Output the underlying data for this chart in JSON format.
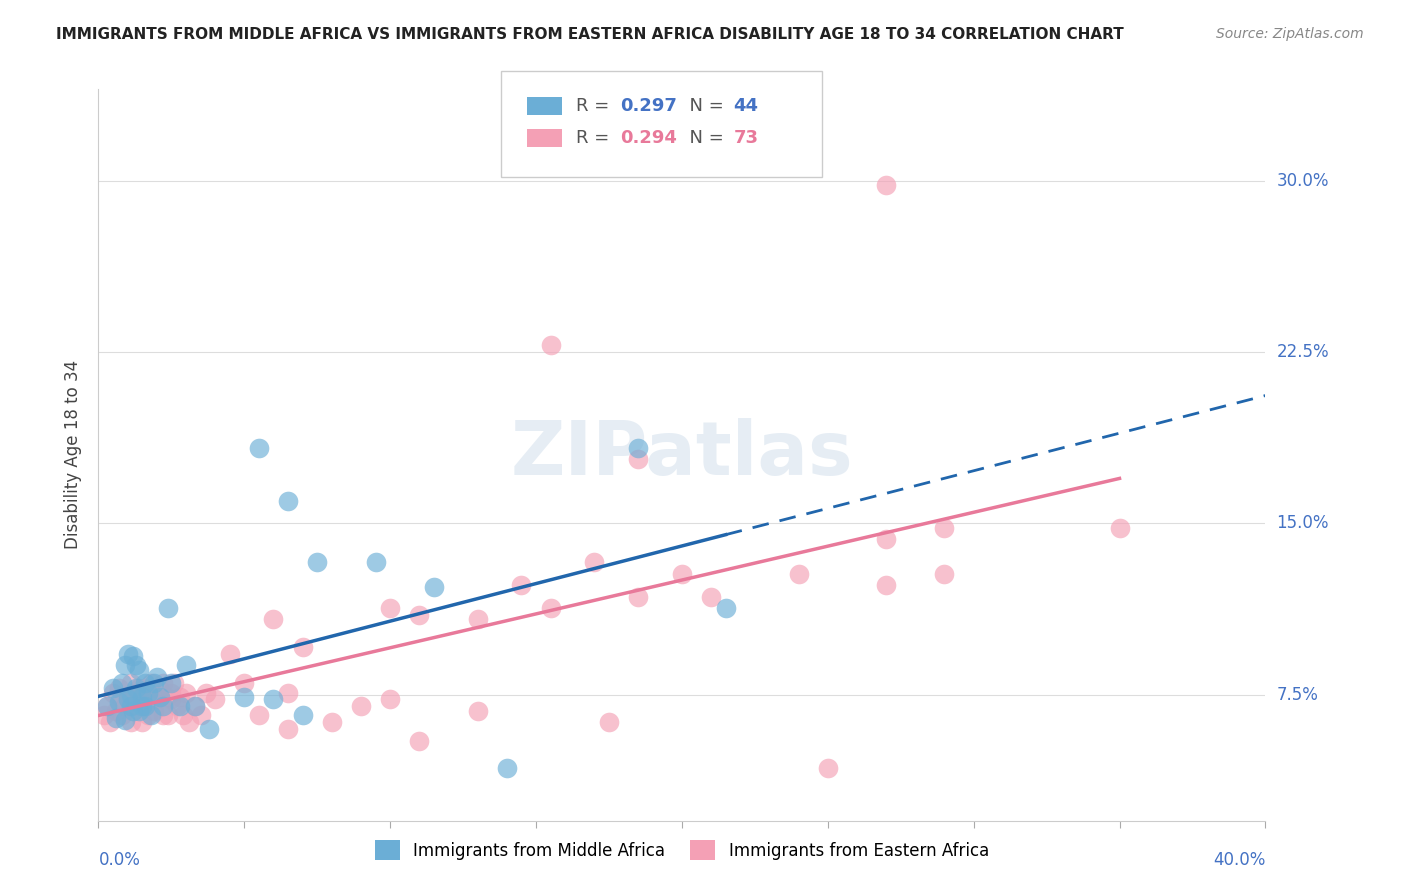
{
  "title": "IMMIGRANTS FROM MIDDLE AFRICA VS IMMIGRANTS FROM EASTERN AFRICA DISABILITY AGE 18 TO 34 CORRELATION CHART",
  "source": "Source: ZipAtlas.com",
  "ylabel": "Disability Age 18 to 34",
  "ytick_labels": [
    "7.5%",
    "15.0%",
    "22.5%",
    "30.0%"
  ],
  "ytick_values": [
    0.075,
    0.15,
    0.225,
    0.3
  ],
  "xlim": [
    0.0,
    0.4
  ],
  "ylim": [
    0.02,
    0.34
  ],
  "blue_R": "0.297",
  "blue_N": "44",
  "pink_R": "0.294",
  "pink_N": "73",
  "legend_label_blue": "Immigrants from Middle Africa",
  "legend_label_pink": "Immigrants from Eastern Africa",
  "blue_color": "#6baed6",
  "pink_color": "#f4a0b5",
  "blue_line_color": "#2166ac",
  "pink_line_color": "#e8799a",
  "blue_scatter_x": [
    0.003,
    0.005,
    0.006,
    0.007,
    0.008,
    0.009,
    0.009,
    0.01,
    0.01,
    0.011,
    0.011,
    0.012,
    0.012,
    0.013,
    0.013,
    0.014,
    0.014,
    0.015,
    0.015,
    0.016,
    0.016,
    0.017,
    0.018,
    0.019,
    0.02,
    0.021,
    0.022,
    0.024,
    0.025,
    0.028,
    0.03,
    0.033,
    0.038,
    0.05,
    0.055,
    0.06,
    0.065,
    0.07,
    0.075,
    0.095,
    0.115,
    0.14,
    0.185,
    0.215
  ],
  "blue_scatter_y": [
    0.07,
    0.078,
    0.065,
    0.072,
    0.08,
    0.064,
    0.088,
    0.073,
    0.093,
    0.07,
    0.075,
    0.068,
    0.092,
    0.088,
    0.078,
    0.068,
    0.086,
    0.074,
    0.07,
    0.08,
    0.07,
    0.076,
    0.066,
    0.08,
    0.083,
    0.074,
    0.07,
    0.113,
    0.08,
    0.07,
    0.088,
    0.07,
    0.06,
    0.074,
    0.183,
    0.073,
    0.16,
    0.066,
    0.133,
    0.133,
    0.122,
    0.043,
    0.183,
    0.113
  ],
  "pink_scatter_x": [
    0.002,
    0.003,
    0.004,
    0.005,
    0.006,
    0.007,
    0.008,
    0.008,
    0.009,
    0.01,
    0.011,
    0.011,
    0.012,
    0.013,
    0.014,
    0.015,
    0.015,
    0.016,
    0.016,
    0.017,
    0.018,
    0.018,
    0.019,
    0.02,
    0.021,
    0.022,
    0.022,
    0.023,
    0.024,
    0.025,
    0.025,
    0.026,
    0.027,
    0.028,
    0.029,
    0.03,
    0.031,
    0.033,
    0.035,
    0.037,
    0.04,
    0.045,
    0.05,
    0.055,
    0.06,
    0.065,
    0.07,
    0.08,
    0.09,
    0.1,
    0.11,
    0.13,
    0.145,
    0.155,
    0.17,
    0.185,
    0.2,
    0.21,
    0.24,
    0.27,
    0.29,
    0.155,
    0.27,
    0.185,
    0.11,
    0.13,
    0.175,
    0.065,
    0.1,
    0.25,
    0.29,
    0.35,
    0.27
  ],
  "pink_scatter_y": [
    0.066,
    0.07,
    0.063,
    0.076,
    0.068,
    0.078,
    0.073,
    0.066,
    0.07,
    0.074,
    0.08,
    0.063,
    0.076,
    0.07,
    0.078,
    0.063,
    0.076,
    0.07,
    0.078,
    0.066,
    0.073,
    0.08,
    0.068,
    0.073,
    0.077,
    0.066,
    0.08,
    0.074,
    0.066,
    0.073,
    0.076,
    0.08,
    0.07,
    0.074,
    0.066,
    0.076,
    0.063,
    0.07,
    0.066,
    0.076,
    0.073,
    0.093,
    0.08,
    0.066,
    0.108,
    0.076,
    0.096,
    0.063,
    0.07,
    0.113,
    0.11,
    0.108,
    0.123,
    0.113,
    0.133,
    0.118,
    0.128,
    0.118,
    0.128,
    0.143,
    0.148,
    0.228,
    0.298,
    0.178,
    0.055,
    0.068,
    0.063,
    0.06,
    0.073,
    0.043,
    0.128,
    0.148,
    0.123
  ]
}
